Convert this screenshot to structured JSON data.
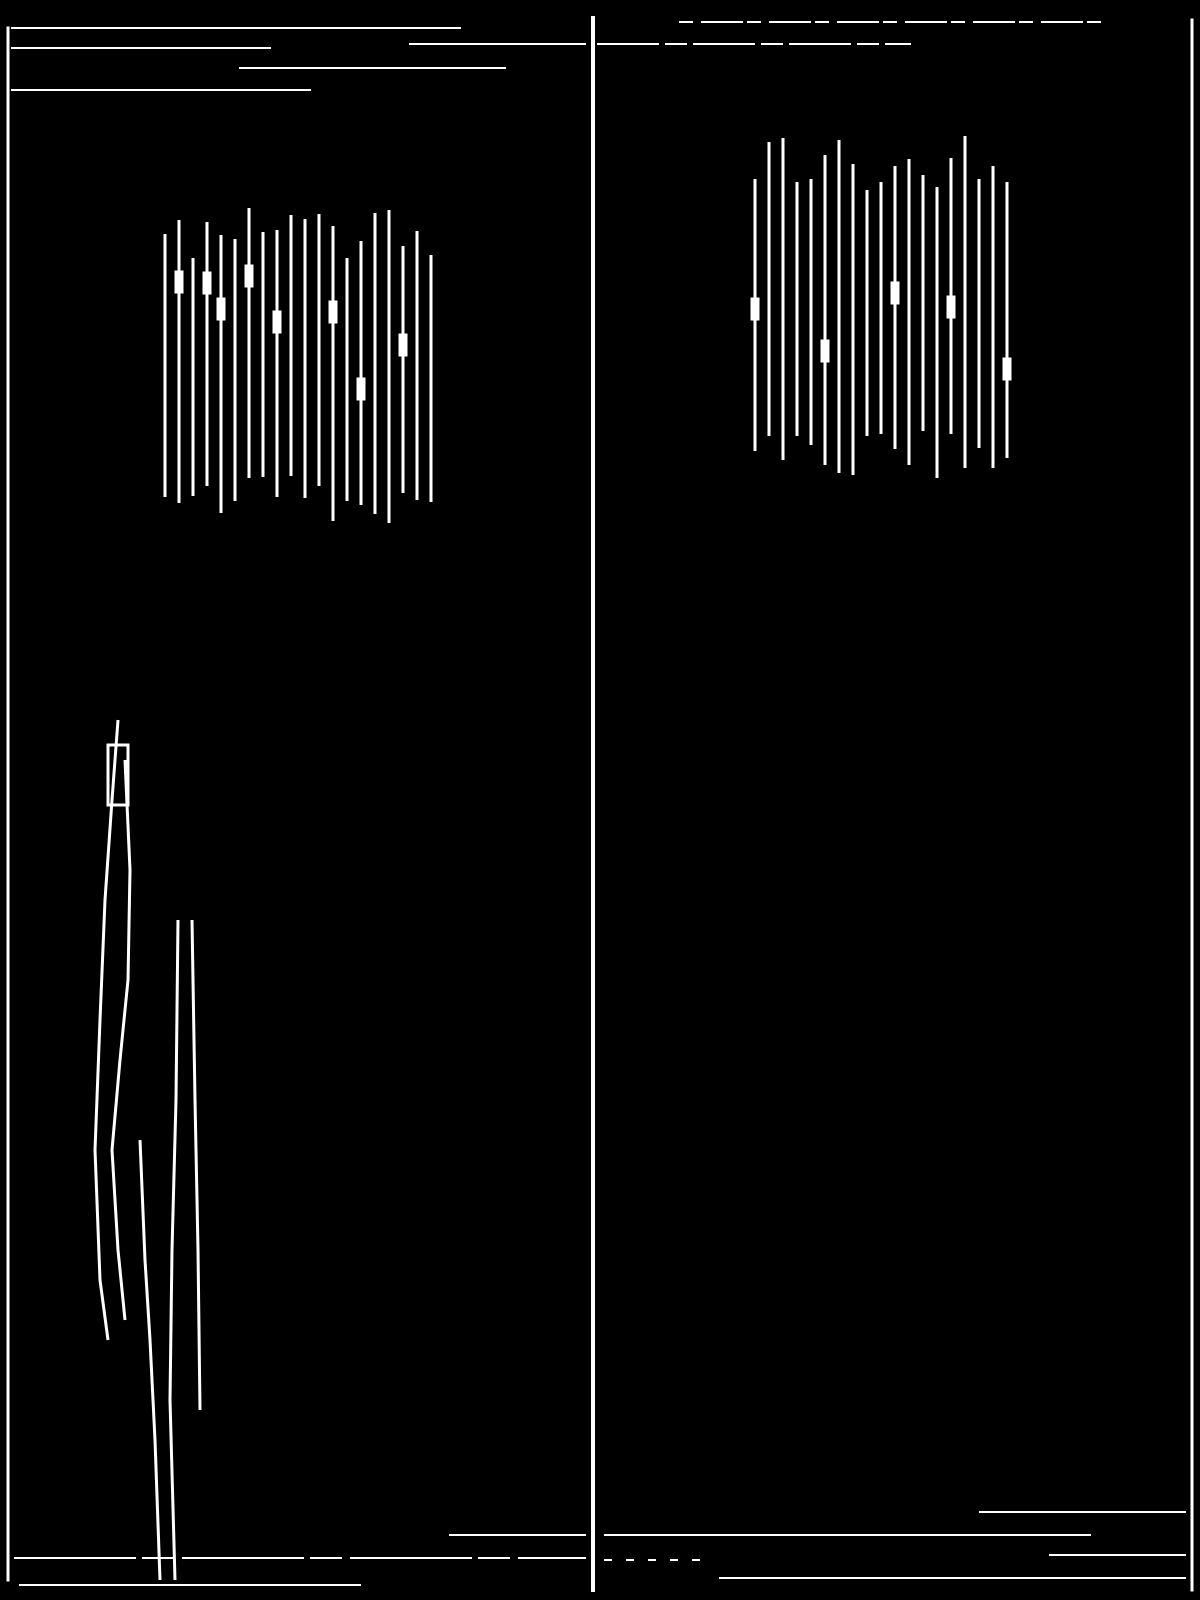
{
  "image": {
    "description_free": true,
    "background_color": "#000000",
    "line_color": "#ffffff",
    "panels": [
      {
        "id": "left-panel",
        "text_fragments": []
      },
      {
        "id": "right-panel",
        "text_fragments": []
      }
    ]
  }
}
